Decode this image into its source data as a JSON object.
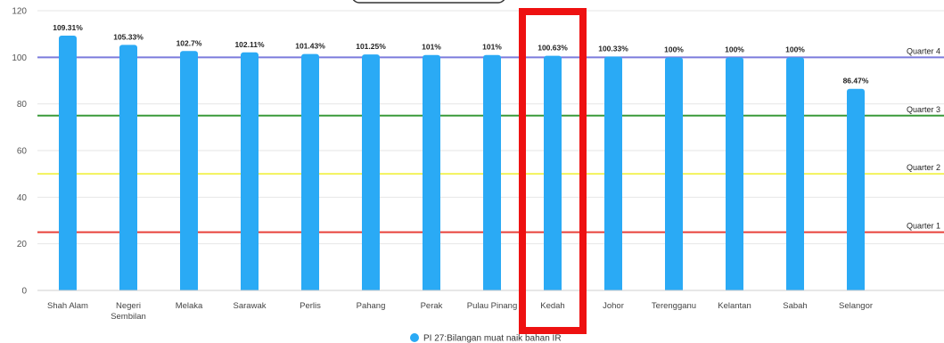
{
  "chart_data": {
    "type": "bar",
    "categories": [
      "Shah Alam",
      "Negeri Sembilan",
      "Melaka",
      "Sarawak",
      "Perlis",
      "Pahang",
      "Perak",
      "Pulau Pinang",
      "Kedah",
      "Johor",
      "Terengganu",
      "Kelantan",
      "Sabah",
      "Selangor"
    ],
    "category_lines": [
      [
        "Shah Alam"
      ],
      [
        "Negeri",
        "Sembilan"
      ],
      [
        "Melaka"
      ],
      [
        "Sarawak"
      ],
      [
        "Perlis"
      ],
      [
        "Pahang"
      ],
      [
        "Perak"
      ],
      [
        "Pulau Pinang"
      ],
      [
        "Kedah"
      ],
      [
        "Johor"
      ],
      [
        "Terengganu"
      ],
      [
        "Kelantan"
      ],
      [
        "Sabah"
      ],
      [
        "Selangor"
      ]
    ],
    "series": [
      {
        "name": "PI 27:Bilangan muat naik bahan IR",
        "values": [
          109.31,
          105.33,
          102.7,
          102.11,
          101.43,
          101.25,
          101,
          101,
          100.63,
          100.33,
          100,
          100,
          100,
          86.47
        ],
        "labels": [
          "109.31%",
          "105.33%",
          "102.7%",
          "102.11%",
          "101.43%",
          "101.25%",
          "101%",
          "101%",
          "100.63%",
          "100.33%",
          "100%",
          "100%",
          "100%",
          "86.47%"
        ],
        "color": "#2aaaf5"
      }
    ],
    "ylim": [
      0,
      120
    ],
    "yticks": [
      0,
      20,
      40,
      60,
      80,
      100,
      120
    ],
    "reference_lines": [
      {
        "label": "Quarter 4",
        "value": 100,
        "color": "#7b7bdc"
      },
      {
        "label": "Quarter 3",
        "value": 75,
        "color": "#3a9a3a"
      },
      {
        "label": "Quarter 2",
        "value": 50,
        "color": "#f2f25a"
      },
      {
        "label": "Quarter 1",
        "value": 25,
        "color": "#e8413a"
      }
    ],
    "highlight": {
      "category": "Kedah",
      "color": "#ee1111"
    },
    "grid": true,
    "legend": "bottom-center"
  }
}
